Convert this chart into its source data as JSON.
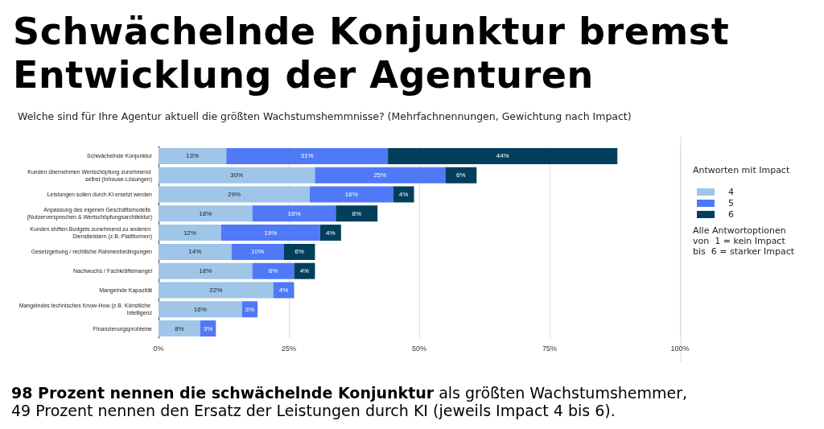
{
  "chart_data": {
    "type": "bar",
    "orientation": "horizontal",
    "stacked": true,
    "title": "Schwächelnde Konjunktur bremst Entwicklung der Agenturen",
    "subtitle": "Welche sind für Ihre Agentur aktuell die größten Wachstumshemmnisse? (Mehrfachnennungen, Gewichtung nach Impact)",
    "categories": [
      "Schwächelnde Konjunktur",
      "Kunden übernehmen Wertschöpfung zunehmend selbst (Inhouse-Lösungen)",
      "Leistungen sollen durch KI ersetzt werden",
      "Anpassung des eigenen Geschäftsmodells (Nutzerversprechen & Wertschöpfungsarchitektur)",
      "Kunden shiften Budgets zunehmend zu anderen Dienstleistern (z.B. Plattformen)",
      "Gesetzgebung / rechtliche Rahmenbedingungen",
      "Nachwuchs / Fachkräftemangel",
      "Mangelnde Kapazität",
      "Mangelndes technisches Know-How (z.B. Künstliche Intelligenz",
      "Finanzierungsprobleme"
    ],
    "series": [
      {
        "name": "4",
        "color": "#9fc5e8",
        "values": [
          13,
          30,
          29,
          18,
          12,
          14,
          18,
          22,
          16,
          8
        ],
        "value_labels": [
          "13%",
          "30%",
          "29%",
          "18%",
          "12%",
          "14%",
          "18%",
          "22%",
          "16%",
          "8%"
        ]
      },
      {
        "name": "5",
        "color": "#5079f7",
        "values": [
          31,
          25,
          16,
          16,
          19,
          10,
          8,
          4,
          3,
          3
        ],
        "value_labels": [
          "31%",
          "25%",
          "16%",
          "16%",
          "19%",
          "10%",
          "8%",
          "4%",
          "3%",
          "3%"
        ]
      },
      {
        "name": "6",
        "color": "#013f5c",
        "values": [
          44,
          6,
          4,
          8,
          4,
          6,
          4,
          null,
          null,
          null
        ],
        "value_labels": [
          "44%",
          "6%",
          "4%",
          "8%",
          "4%",
          "6%",
          "4%",
          null,
          null,
          null
        ]
      }
    ],
    "xlim": [
      0,
      100
    ],
    "xticks": [
      {
        "value": 0,
        "label": "0%"
      },
      {
        "value": 25,
        "label": "25%"
      },
      {
        "value": 50,
        "label": "50%"
      },
      {
        "value": 75,
        "label": "75%"
      },
      {
        "value": 100,
        "label": "100%"
      }
    ],
    "grid": "x",
    "legend": "right",
    "legend_title": "Antworten mit Impact",
    "annotations": [
      "98 Prozent nennen die schwächelnde Konjunktur",
      "als größten Wachstumshemmer,",
      "49 Prozent nennen den Ersatz der Leistungen durch KI (jeweils Impact 4 bis 6).",
      "Alle Antwortoptionen\nvon  1 = kein Impact\nbis  6 = starker Impact"
    ]
  }
}
